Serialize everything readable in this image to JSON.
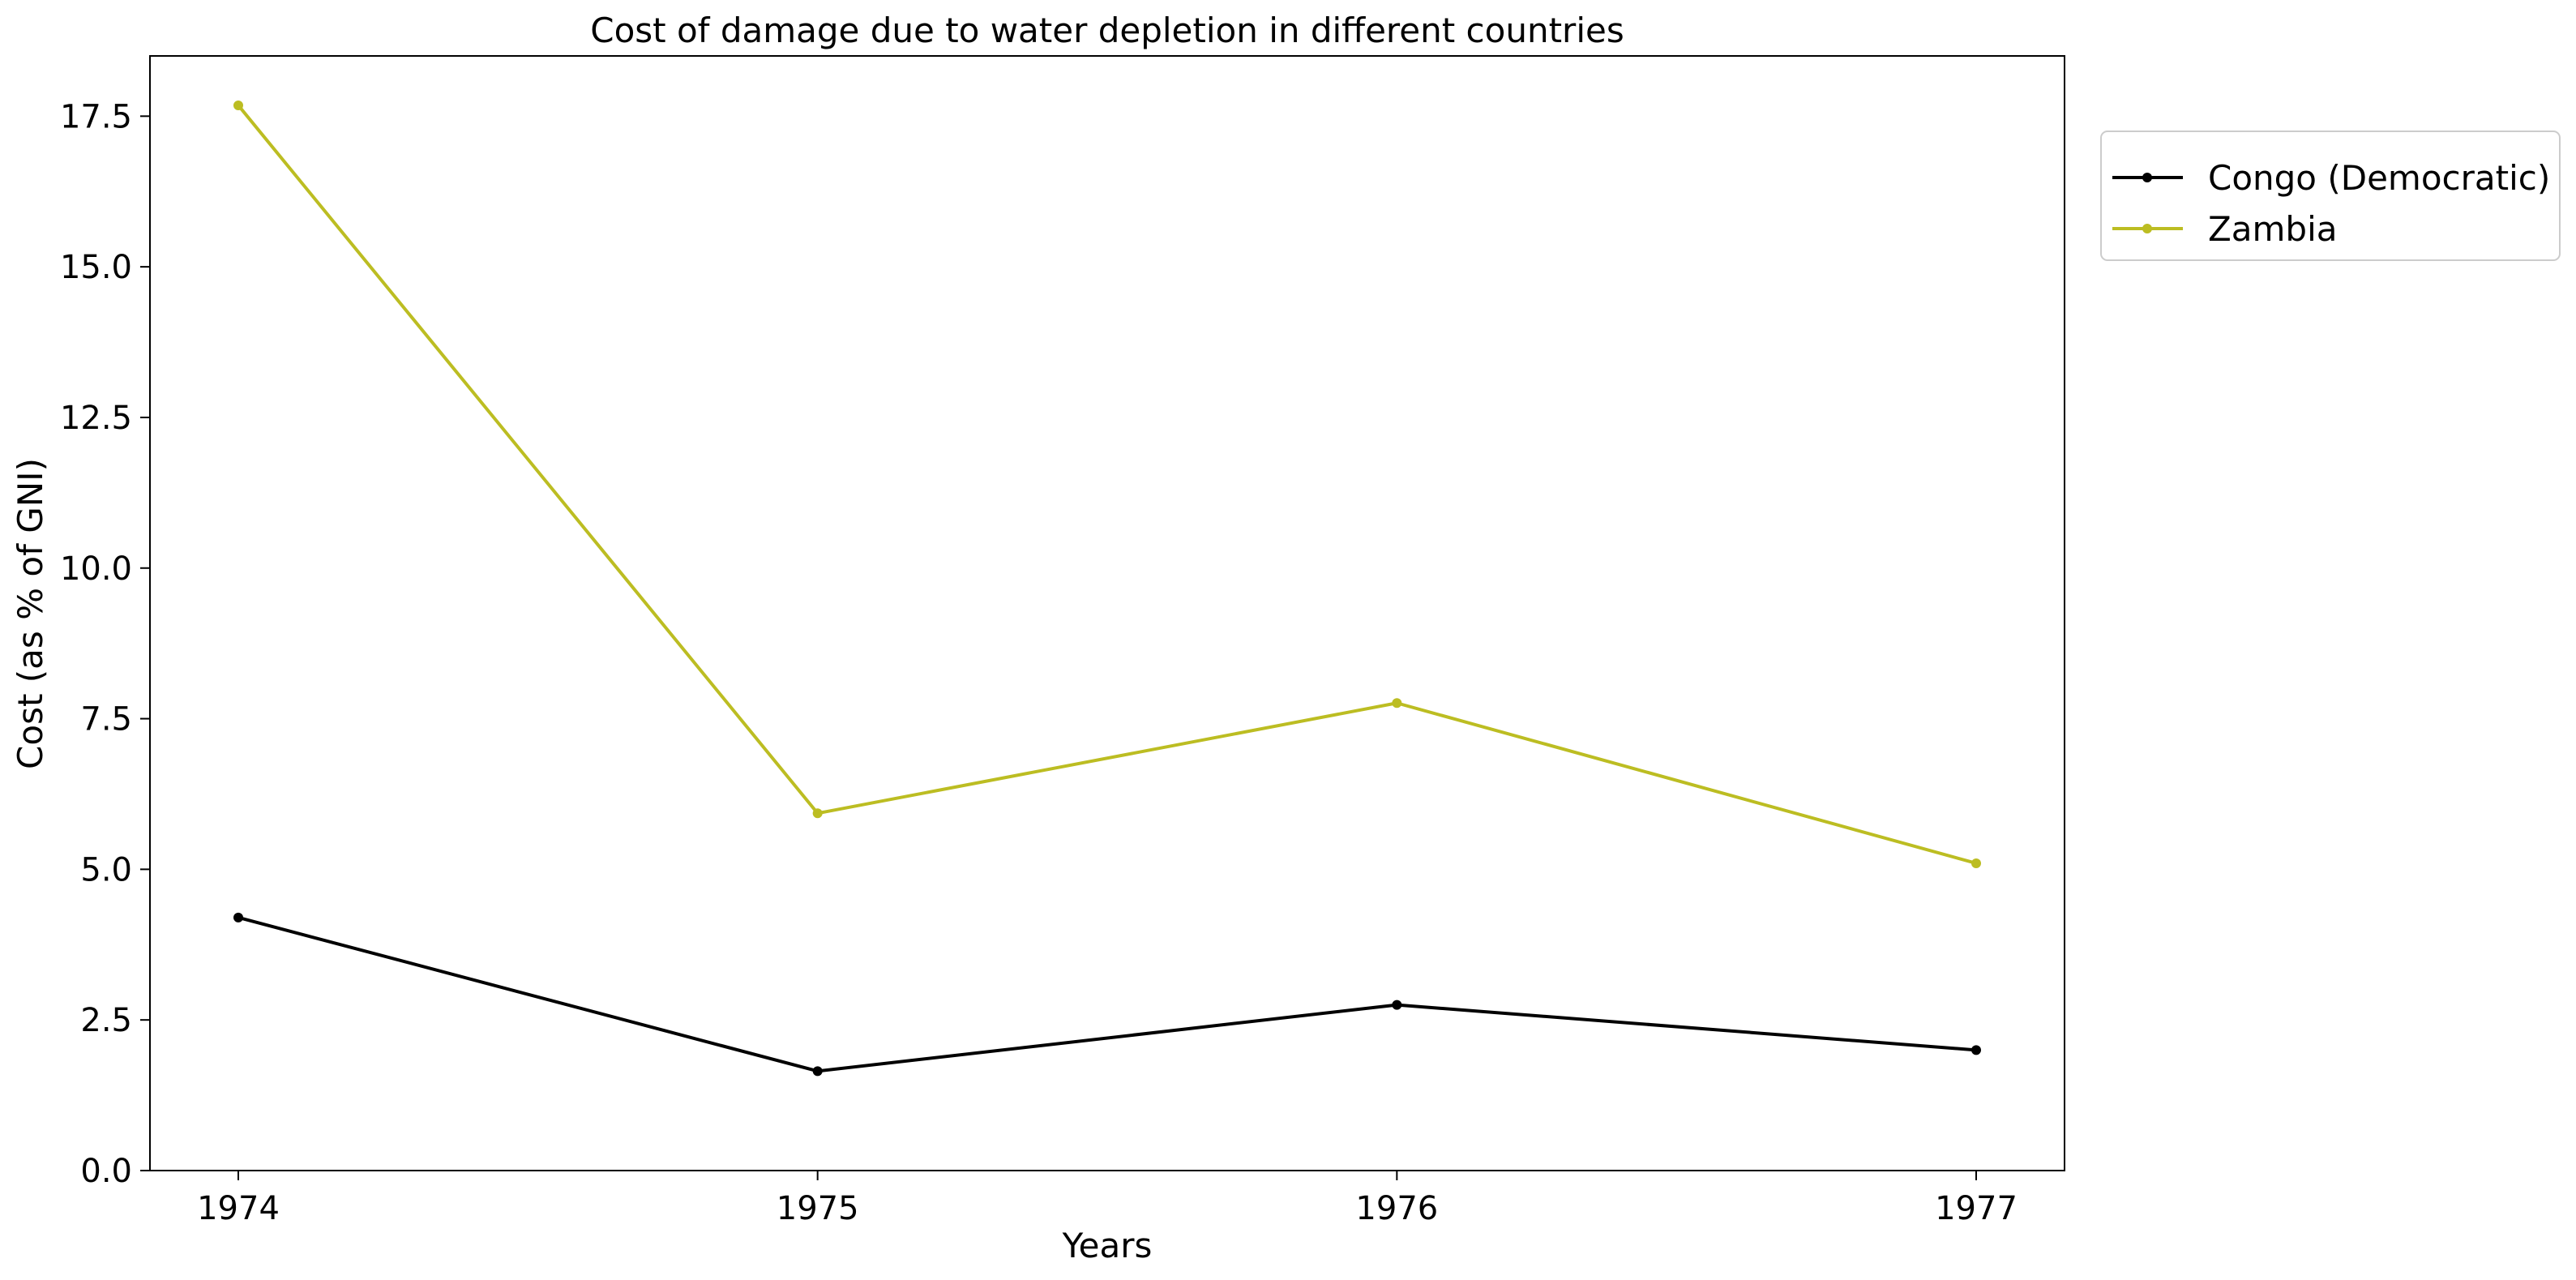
{
  "chart_data": {
    "type": "line",
    "title": "Cost of damage due to water depletion in different countries",
    "xlabel": "Years",
    "ylabel": "Cost (as % of GNI)",
    "x": [
      "1974",
      "1975",
      "1976",
      "1977"
    ],
    "xticks": [
      "1974",
      "1975",
      "1976",
      "1977"
    ],
    "ylim": [
      0,
      18.5
    ],
    "yticks": [
      0,
      2.5,
      5,
      7.5,
      10,
      12.5,
      15,
      17.5
    ],
    "yticklabels": [
      "0.0",
      "2.5",
      "5.0",
      "7.5",
      "10.0",
      "12.5",
      "15.0",
      "17.5"
    ],
    "grid": false,
    "legend_position": "outside-top-right",
    "series": [
      {
        "name": "Congo (Democratic)",
        "color": "#000000",
        "values": [
          4.2,
          1.65,
          2.75,
          2.0
        ]
      },
      {
        "name": "Zambia",
        "color": "#bcbd22",
        "values": [
          17.68,
          5.93,
          7.76,
          5.1
        ]
      }
    ]
  }
}
